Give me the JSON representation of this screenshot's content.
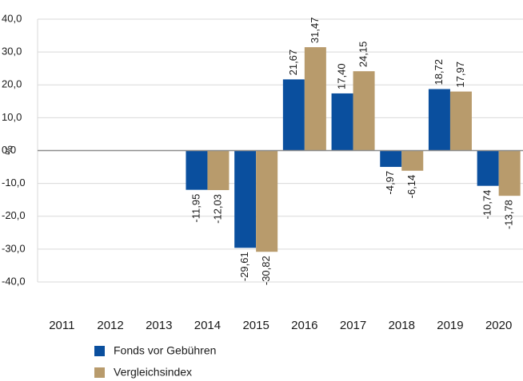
{
  "chart_data": {
    "type": "bar",
    "y_axis_label": "%",
    "categories": [
      "2011",
      "2012",
      "2013",
      "2014",
      "2015",
      "2016",
      "2017",
      "2018",
      "2019",
      "2020"
    ],
    "series": [
      {
        "name": "Fonds vor Gebühren",
        "color": "#0a4f9e",
        "values": [
          null,
          null,
          null,
          -11.95,
          -29.61,
          21.67,
          17.4,
          -4.97,
          18.72,
          -10.74
        ],
        "value_labels": [
          null,
          null,
          null,
          "-11,95",
          "-29,61",
          "21,67",
          "17,40",
          "-4,97",
          "18,72",
          "-10,74"
        ]
      },
      {
        "name": "Vergleichsindex",
        "color": "#b89b6c",
        "values": [
          null,
          null,
          null,
          -12.03,
          -30.82,
          31.47,
          24.15,
          -6.14,
          17.97,
          -13.78
        ],
        "value_labels": [
          null,
          null,
          null,
          "-12,03",
          "-30,82",
          "31,47",
          "24,15",
          "-6,14",
          "17,97",
          "-13,78"
        ]
      }
    ],
    "ylim": [
      -40,
      40
    ],
    "yticks": [
      {
        "value": 40,
        "label": "40,0"
      },
      {
        "value": 30,
        "label": "30,0"
      },
      {
        "value": 20,
        "label": "20,0"
      },
      {
        "value": 10,
        "label": "10,0"
      },
      {
        "value": 0,
        "label": "0,0"
      },
      {
        "value": -10,
        "label": "-10,0"
      },
      {
        "value": -20,
        "label": "-20,0"
      },
      {
        "value": -30,
        "label": "-30,0"
      },
      {
        "value": -40,
        "label": "-40,0"
      }
    ],
    "grid": true,
    "legend": "bottom"
  }
}
